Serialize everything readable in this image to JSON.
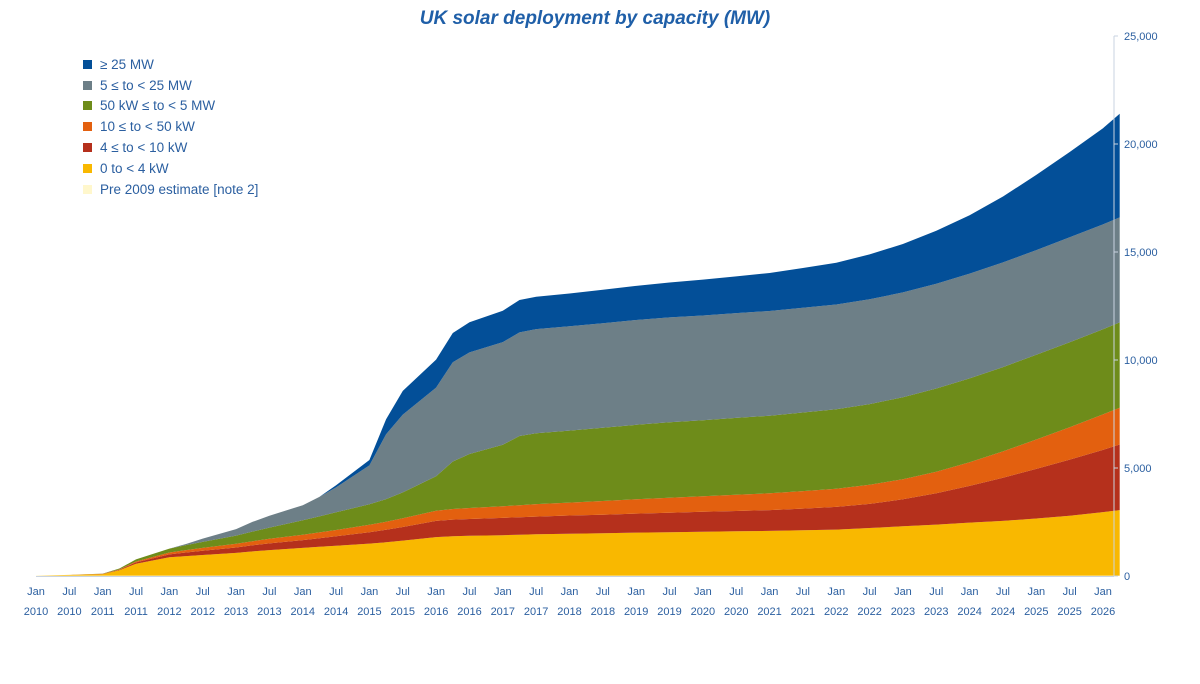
{
  "chart_data": {
    "type": "area",
    "stacked": true,
    "title": "UK solar deployment by capacity (MW)",
    "xlabel": "",
    "ylabel": "",
    "ylim": [
      0,
      25000
    ],
    "yticks": [
      "25,000",
      "20,000",
      "15,000",
      "10,000",
      "5,000",
      "0"
    ],
    "ytick_values": [
      25000,
      20000,
      15000,
      10000,
      5000,
      0
    ],
    "y_axis_side": "right",
    "grid": false,
    "legend_position": "top-left",
    "x_start_year": 2010,
    "x_tick_labels": [
      [
        "Jan",
        "2010"
      ],
      [
        "Jul",
        "2010"
      ],
      [
        "Jan",
        "2011"
      ],
      [
        "Jul",
        "2011"
      ],
      [
        "Jan",
        "2012"
      ],
      [
        "Jul",
        "2012"
      ],
      [
        "Jan",
        "2013"
      ],
      [
        "Jul",
        "2013"
      ],
      [
        "Jan",
        "2014"
      ],
      [
        "Jul",
        "2014"
      ],
      [
        "Jan",
        "2015"
      ],
      [
        "Jul",
        "2015"
      ],
      [
        "Jan",
        "2016"
      ],
      [
        "Jul",
        "2016"
      ],
      [
        "Jan",
        "2017"
      ],
      [
        "Jul",
        "2017"
      ],
      [
        "Jan",
        "2018"
      ],
      [
        "Jul",
        "2018"
      ],
      [
        "Jan",
        "2019"
      ],
      [
        "Jul",
        "2019"
      ],
      [
        "Jan",
        "2020"
      ],
      [
        "Jul",
        "2020"
      ],
      [
        "Jan",
        "2021"
      ],
      [
        "Jul",
        "2021"
      ],
      [
        "Jan",
        "2022"
      ],
      [
        "Jul",
        "2022"
      ],
      [
        "Jan",
        "2023"
      ],
      [
        "Jul",
        "2023"
      ],
      [
        "Jan",
        "2024"
      ],
      [
        "Jul",
        "2024"
      ],
      [
        "Jan",
        "2025"
      ],
      [
        "Jul",
        "2025"
      ],
      [
        "Jan",
        "2026"
      ]
    ],
    "x": [
      "2010.0",
      "2010.5",
      "2011.0",
      "2011.25",
      "2011.5",
      "2012.0",
      "2012.25",
      "2012.5",
      "2013.0",
      "2013.25",
      "2013.5",
      "2014.0",
      "2014.25",
      "2014.5",
      "2015.0",
      "2015.25",
      "2015.5",
      "2016.0",
      "2016.25",
      "2016.5",
      "2017.0",
      "2017.25",
      "2017.5",
      "2018.0",
      "2018.5",
      "2019.0",
      "2019.5",
      "2020.0",
      "2020.5",
      "2021.0",
      "2021.5",
      "2022.0",
      "2022.5",
      "2023.0",
      "2023.5",
      "2024.0",
      "2024.5",
      "2025.0",
      "2025.5",
      "2026.0",
      "2026.25"
    ],
    "series": [
      {
        "name": "Pre 2009 estimate [note 2]",
        "color": "#fff7cc",
        "values": [
          20,
          20,
          20,
          20,
          20,
          20,
          20,
          20,
          20,
          20,
          20,
          20,
          20,
          20,
          20,
          20,
          20,
          20,
          20,
          20,
          20,
          20,
          20,
          20,
          20,
          20,
          20,
          20,
          20,
          20,
          20,
          20,
          20,
          20,
          20,
          20,
          20,
          20,
          20,
          20,
          20
        ]
      },
      {
        "name": "0 to < 4 kW",
        "color": "#f9b800",
        "values": [
          0,
          30,
          70,
          250,
          550,
          850,
          900,
          950,
          1050,
          1120,
          1180,
          1280,
          1330,
          1380,
          1480,
          1540,
          1620,
          1780,
          1820,
          1840,
          1870,
          1890,
          1910,
          1940,
          1960,
          1990,
          2010,
          2030,
          2050,
          2070,
          2100,
          2130,
          2200,
          2280,
          2360,
          2450,
          2530,
          2640,
          2770,
          2940,
          3030
        ]
      },
      {
        "name": "4 ≤ to < 10 kW",
        "color": "#b5301c",
        "values": [
          0,
          0,
          5,
          20,
          60,
          130,
          170,
          200,
          250,
          280,
          310,
          360,
          400,
          440,
          530,
          580,
          630,
          750,
          770,
          780,
          800,
          810,
          820,
          840,
          860,
          880,
          900,
          920,
          940,
          960,
          1000,
          1050,
          1120,
          1250,
          1450,
          1700,
          2000,
          2300,
          2600,
          2880,
          3040
        ]
      },
      {
        "name": "10 ≤ to < 50 kW",
        "color": "#e3600f",
        "values": [
          0,
          0,
          5,
          15,
          40,
          90,
          110,
          130,
          170,
          190,
          210,
          250,
          270,
          290,
          340,
          370,
          400,
          470,
          490,
          510,
          540,
          560,
          580,
          600,
          630,
          660,
          690,
          720,
          750,
          780,
          810,
          840,
          880,
          930,
          1000,
          1100,
          1220,
          1360,
          1500,
          1640,
          1700
        ]
      },
      {
        "name": "50 kW ≤ to < 5 MW",
        "color": "#6e8c1a",
        "values": [
          0,
          0,
          10,
          40,
          100,
          180,
          230,
          280,
          380,
          450,
          520,
          670,
          740,
          820,
          950,
          1050,
          1200,
          1600,
          2200,
          2500,
          2850,
          3200,
          3280,
          3330,
          3390,
          3450,
          3500,
          3520,
          3560,
          3590,
          3640,
          3680,
          3740,
          3800,
          3850,
          3880,
          3900,
          3920,
          3930,
          3940,
          3950
        ]
      },
      {
        "name": "5 ≤ to < 25 MW",
        "color": "#6d7f87",
        "values": [
          0,
          0,
          0,
          0,
          0,
          0,
          50,
          150,
          300,
          450,
          550,
          700,
          900,
          1150,
          1800,
          3000,
          3600,
          4100,
          4600,
          4700,
          4750,
          4800,
          4820,
          4830,
          4840,
          4850,
          4850,
          4850,
          4850,
          4850,
          4850,
          4850,
          4850,
          4850,
          4850,
          4850,
          4850,
          4850,
          4860,
          4860,
          4860
        ]
      },
      {
        "name": "≥ 25 MW",
        "color": "#034f98",
        "values": [
          0,
          0,
          0,
          0,
          0,
          0,
          0,
          0,
          0,
          0,
          0,
          0,
          0,
          100,
          250,
          700,
          1100,
          1300,
          1350,
          1400,
          1450,
          1500,
          1500,
          1520,
          1550,
          1580,
          1620,
          1660,
          1700,
          1760,
          1840,
          1930,
          2080,
          2240,
          2450,
          2700,
          3050,
          3480,
          3950,
          4450,
          4800
        ]
      }
    ],
    "legend_order": [
      "≥ 25 MW",
      "5 ≤ to < 25 MW",
      "50 kW ≤ to < 5 MW",
      "10 ≤ to < 50 kW",
      "4 ≤ to < 10 kW",
      "0 to < 4 kW",
      "Pre 2009 estimate [note 2]"
    ]
  }
}
